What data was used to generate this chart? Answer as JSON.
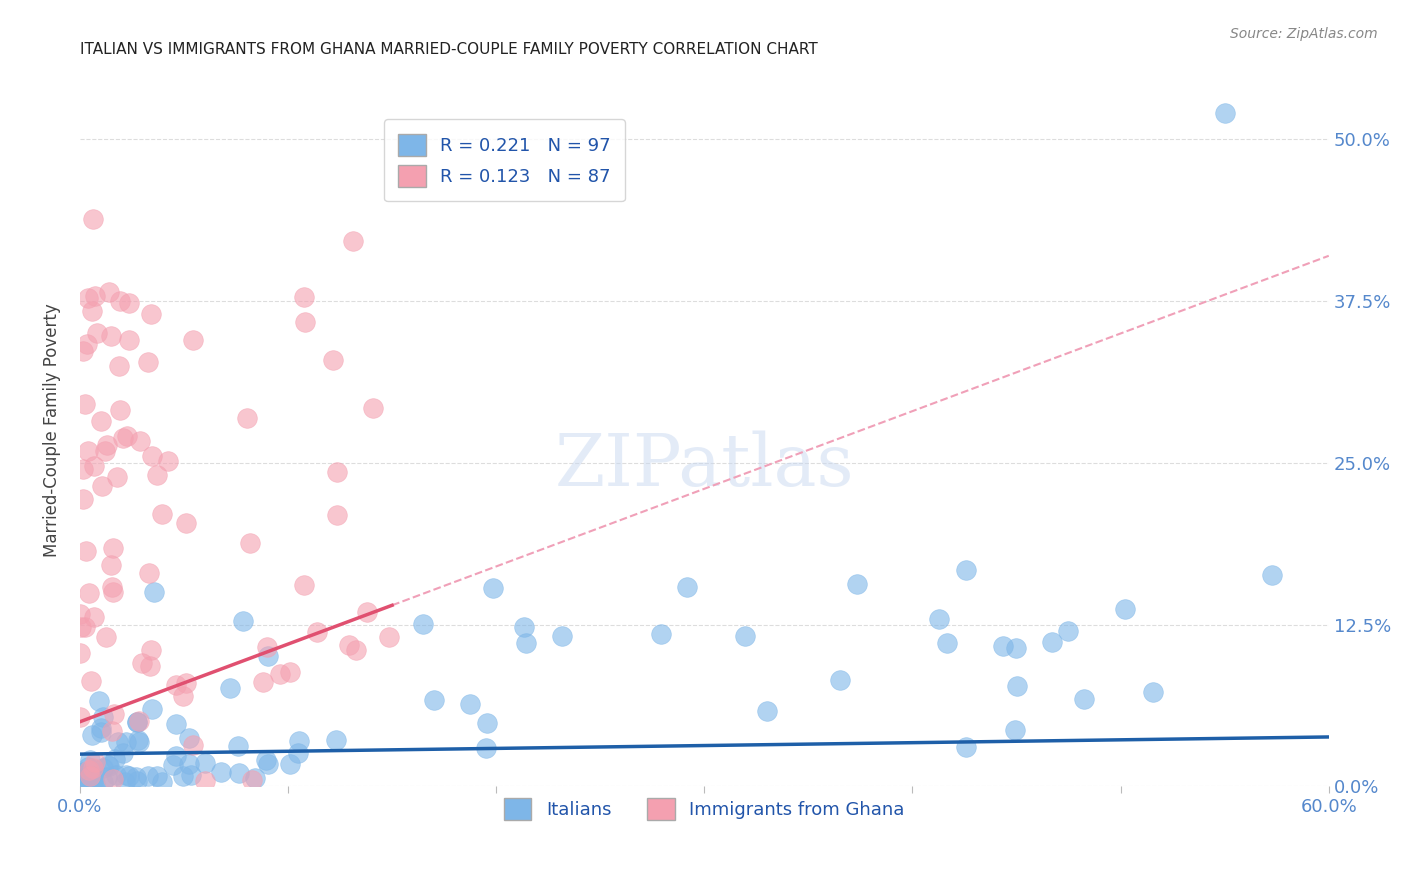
{
  "title": "ITALIAN VS IMMIGRANTS FROM GHANA MARRIED-COUPLE FAMILY POVERTY CORRELATION CHART",
  "source": "Source: ZipAtlas.com",
  "ylabel": "Married-Couple Family Poverty",
  "xlabel_italians": "Italians",
  "xlabel_ghana": "Immigrants from Ghana",
  "xlim": [
    0.0,
    0.6
  ],
  "ylim": [
    0.0,
    0.55
  ],
  "xticks": [
    0.0,
    0.1,
    0.2,
    0.3,
    0.4,
    0.5,
    0.6
  ],
  "xtick_labels": [
    "0.0%",
    "",
    "",
    "",
    "",
    "",
    "60.0%"
  ],
  "ytick_labels": [
    "0.0%",
    "12.5%",
    "25.0%",
    "37.5%",
    "50.0%"
  ],
  "yticks": [
    0.0,
    0.125,
    0.25,
    0.375,
    0.5
  ],
  "blue_color": "#7EB6E8",
  "pink_color": "#F4A0B0",
  "blue_line_color": "#1E5FA8",
  "pink_line_color": "#E05070",
  "blue_trend_color": "#A8C8F0",
  "pink_trend_color": "#F0A0B8",
  "R_italian": 0.221,
  "N_italian": 97,
  "R_ghana": 0.123,
  "N_ghana": 87,
  "watermark": "ZIPatlas",
  "grid_color": "#DDDDDD",
  "background_color": "#FFFFFF",
  "title_fontsize": 11,
  "axis_label_color": "#5588CC",
  "legend_text_color": "#2255AA"
}
